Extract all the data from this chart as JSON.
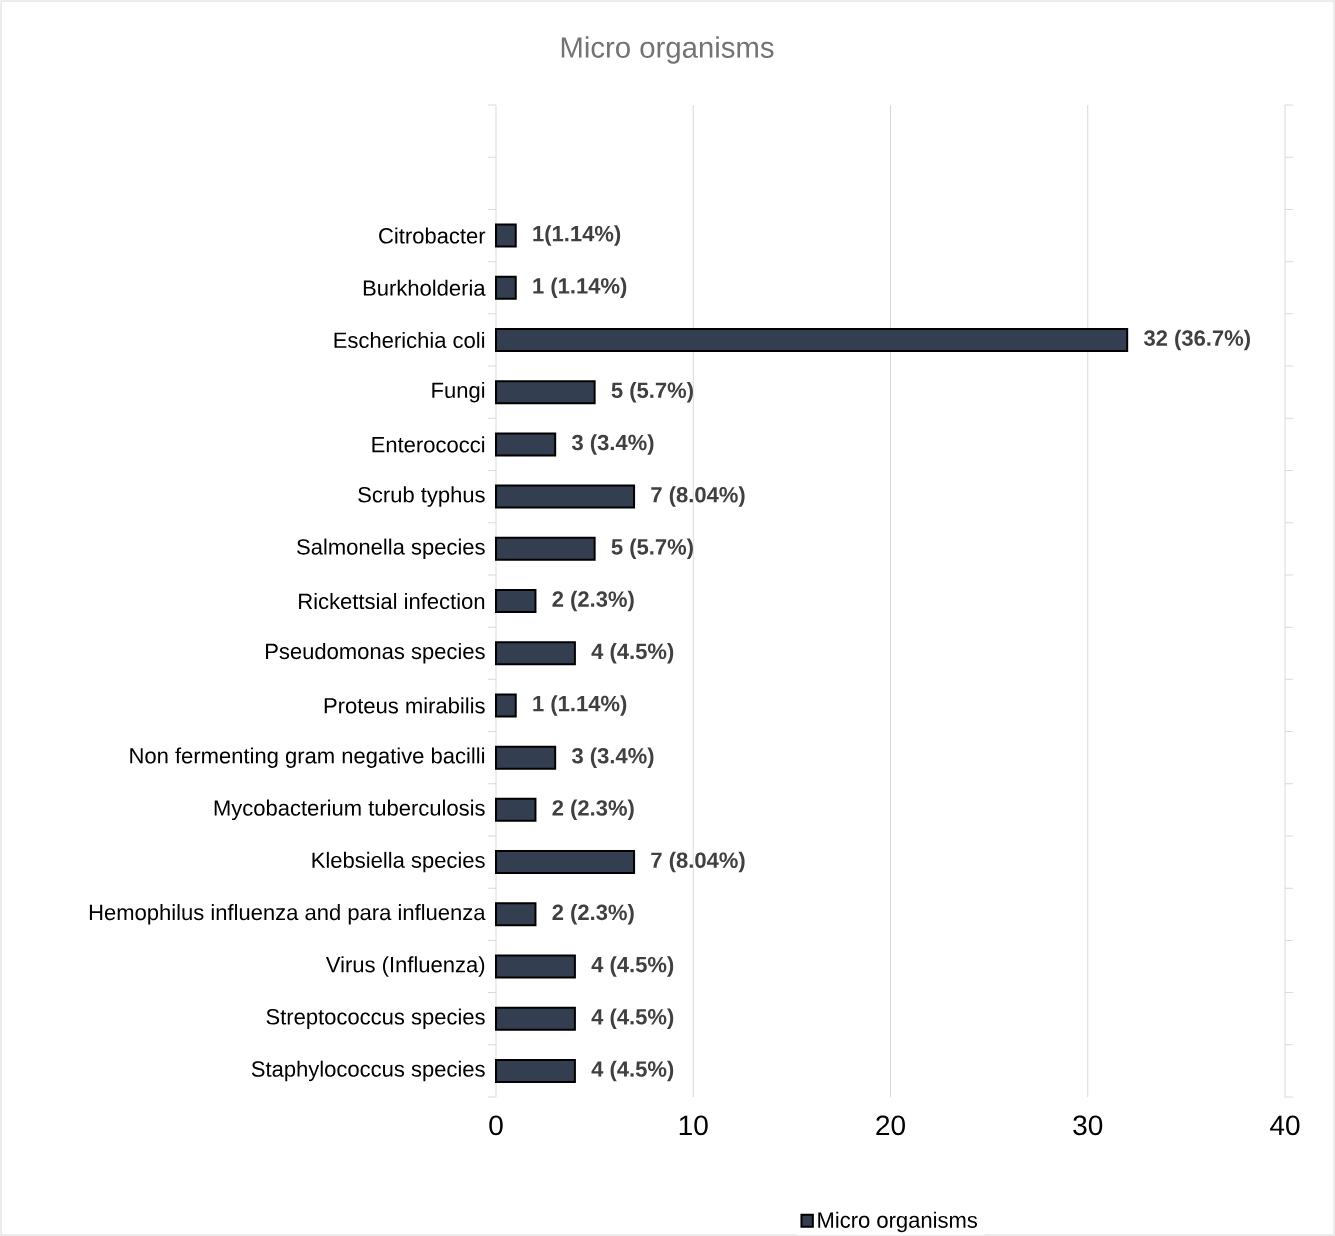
{
  "chart_data": {
    "type": "bar",
    "orientation": "horizontal",
    "title": "Micro organisms",
    "categories": [
      null,
      null,
      "Citrobacter",
      "Burkholderia",
      "Escherichia coli",
      "Fungi",
      "Enterococci",
      "Scrub typhus",
      "Salmonella species",
      "Rickettsial infection",
      "Pseudomonas species",
      "Proteus mirabilis",
      "Non fermenting gram negative bacilli",
      "Mycobacterium tuberculosis",
      "Klebsiella species",
      "Hemophilus influenza and para influenza",
      "Virus (Influenza)",
      "Streptococcus species",
      "Staphylococcus species"
    ],
    "series": [
      {
        "name": "Micro organisms",
        "color": "#333f50",
        "values": [
          null,
          null,
          1,
          1,
          32,
          5,
          3,
          7,
          5,
          2,
          4,
          1,
          3,
          2,
          7,
          2,
          4,
          4,
          4
        ],
        "value_labels": [
          null,
          null,
          "1(1.14%)",
          "1 (1.14%)",
          "32 (36.7%)",
          "5 (5.7%)",
          "3 (3.4%)",
          "7 (8.04%)",
          "5 (5.7%)",
          "2 (2.3%)",
          "4 (4.5%)",
          "1 (1.14%)",
          "3 (3.4%)",
          "2 (2.3%)",
          "7 (8.04%)",
          "2 (2.3%)",
          "4 (4.5%)",
          "4 (4.5%)",
          "4 (4.5%)"
        ]
      }
    ],
    "xlim": [
      0,
      40
    ],
    "xticks": [
      0,
      10,
      20,
      30,
      40
    ],
    "grid": "x",
    "legend": "bottom"
  }
}
